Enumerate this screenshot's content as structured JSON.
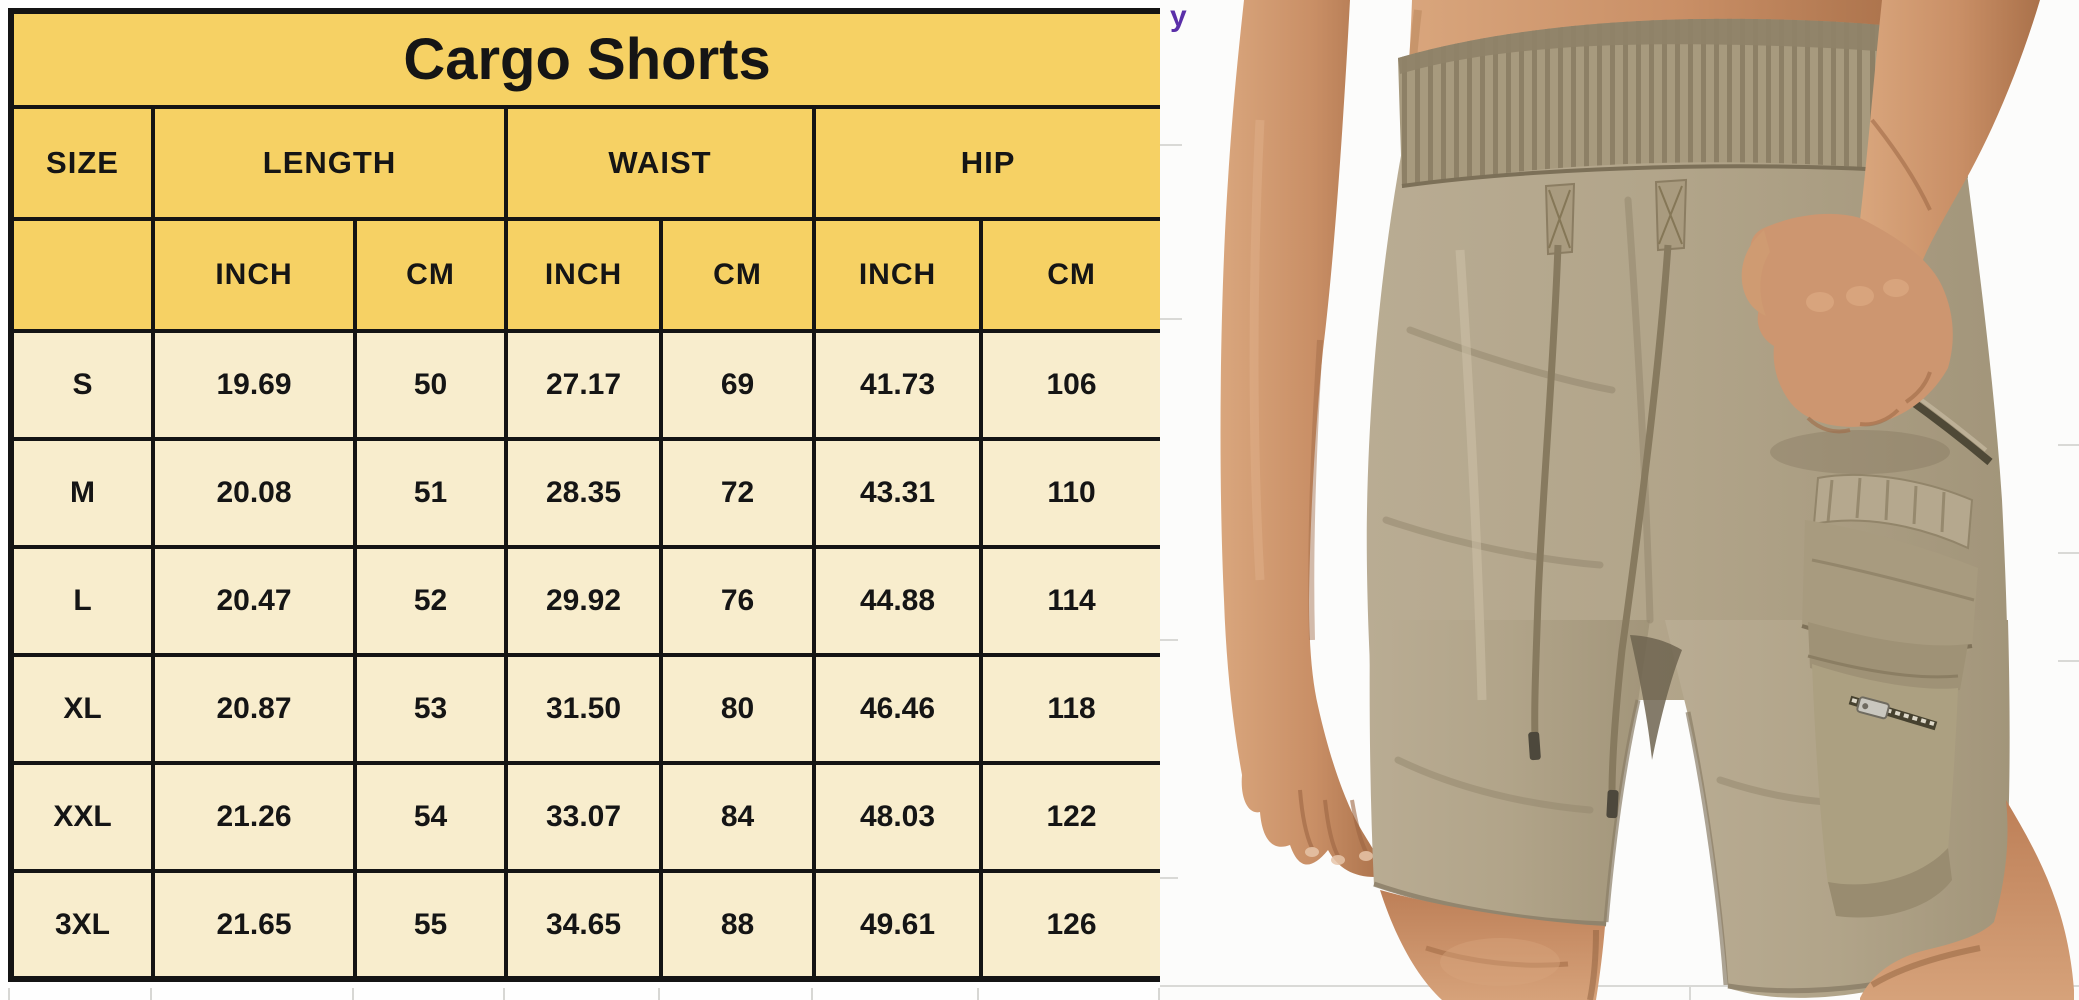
{
  "title": "Cargo Shorts",
  "corner_glyph": "y",
  "size_chart": {
    "size_column_label": "SIZE",
    "column_groups": [
      {
        "label": "LENGTH",
        "units": [
          "INCH",
          "CM"
        ]
      },
      {
        "label": "WAIST",
        "units": [
          "INCH",
          "CM"
        ]
      },
      {
        "label": "HIP",
        "units": [
          "INCH",
          "CM"
        ]
      }
    ],
    "rows": [
      {
        "size": "S",
        "length_inch": "19.69",
        "length_cm": "50",
        "waist_inch": "27.17",
        "waist_cm": "69",
        "hip_inch": "41.73",
        "hip_cm": "106"
      },
      {
        "size": "M",
        "length_inch": "20.08",
        "length_cm": "51",
        "waist_inch": "28.35",
        "waist_cm": "72",
        "hip_inch": "43.31",
        "hip_cm": "110"
      },
      {
        "size": "L",
        "length_inch": "20.47",
        "length_cm": "52",
        "waist_inch": "29.92",
        "waist_cm": "76",
        "hip_inch": "44.88",
        "hip_cm": "114"
      },
      {
        "size": "XL",
        "length_inch": "20.87",
        "length_cm": "53",
        "waist_inch": "31.50",
        "waist_cm": "80",
        "hip_inch": "46.46",
        "hip_cm": "118"
      },
      {
        "size": "XXL",
        "length_inch": "21.26",
        "length_cm": "54",
        "waist_inch": "33.07",
        "waist_cm": "84",
        "hip_inch": "48.03",
        "hip_cm": "122"
      },
      {
        "size": "3XL",
        "length_inch": "21.65",
        "length_cm": "55",
        "waist_inch": "34.65",
        "waist_cm": "88",
        "hip_inch": "49.61",
        "hip_cm": "126"
      }
    ],
    "cell_order": [
      "length_inch",
      "length_cm",
      "waist_inch",
      "waist_cm",
      "hip_inch",
      "hip_cm"
    ]
  },
  "photo": {
    "description": "Man wearing khaki drawstring cargo shorts, right hand tucked into side pocket, flap cargo pocket with zipper on right thigh"
  },
  "colors": {
    "table_yellow": "#f6d164",
    "table_cream": "#f8edcd",
    "table_border": "#141414",
    "glyph_purple": "#5a2fa8",
    "shorts_khaki": "#b3a68c",
    "waistband_khaki": "#a79a7e",
    "skin_tone": "#c8916b",
    "grid_gray": "#d7d7d4"
  }
}
